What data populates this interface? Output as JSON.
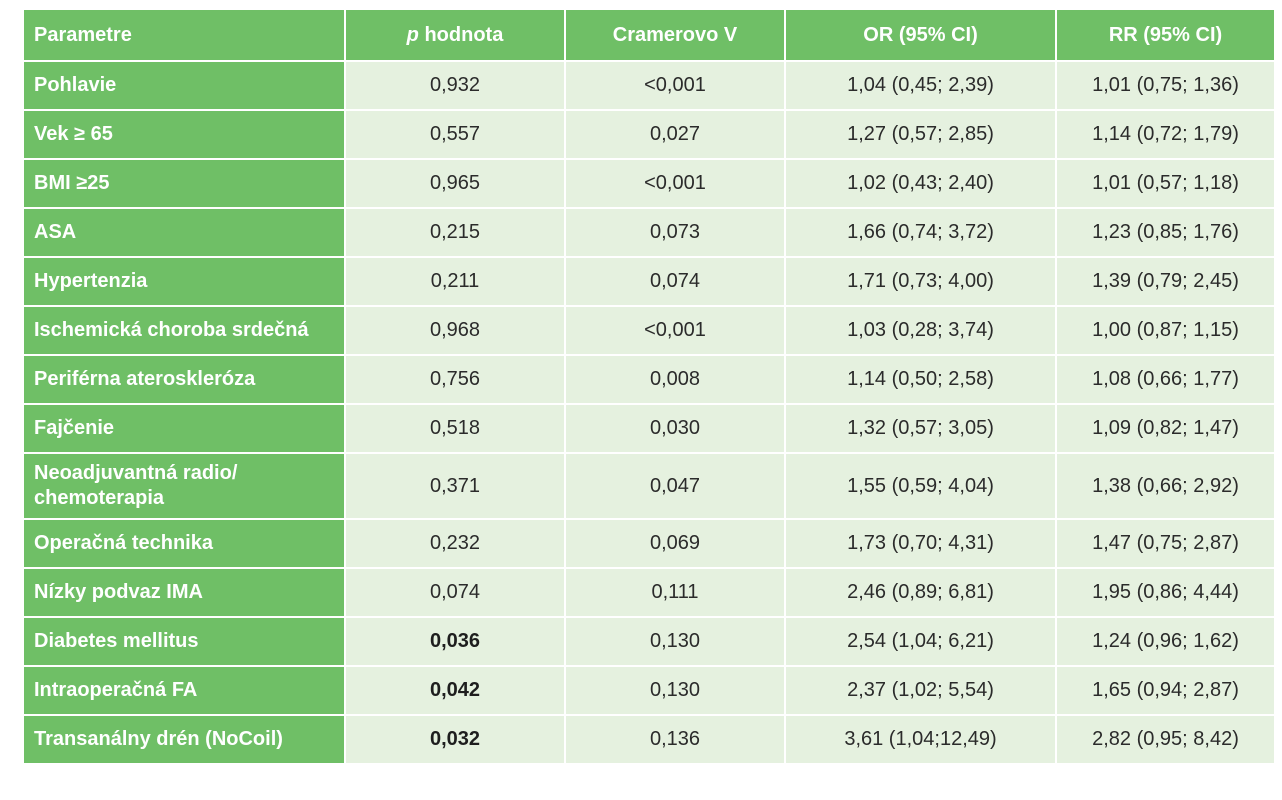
{
  "table": {
    "headers": {
      "parameter": "Parametre",
      "p_italic": "p",
      "p_rest": " hodnota",
      "cramer": "Cramerovo V",
      "or": "OR (95% CI)",
      "rr": "RR (95% CI)"
    },
    "rows": [
      {
        "param": "Pohlavie",
        "p": "0,932",
        "p_bold": false,
        "cramer": "<0,001",
        "or": "1,04 (0,45; 2,39)",
        "rr": "1,01 (0,75; 1,36)"
      },
      {
        "param": "Vek ≥ 65",
        "p": "0,557",
        "p_bold": false,
        "cramer": "0,027",
        "or": "1,27 (0,57; 2,85)",
        "rr": "1,14 (0,72; 1,79)"
      },
      {
        "param": "BMI ≥25",
        "p": "0,965",
        "p_bold": false,
        "cramer": "<0,001",
        "or": "1,02 (0,43; 2,40)",
        "rr": "1,01 (0,57; 1,18)"
      },
      {
        "param": "ASA",
        "p": "0,215",
        "p_bold": false,
        "cramer": "0,073",
        "or": "1,66 (0,74; 3,72)",
        "rr": "1,23 (0,85; 1,76)"
      },
      {
        "param": "Hypertenzia",
        "p": "0,211",
        "p_bold": false,
        "cramer": "0,074",
        "or": "1,71 (0,73; 4,00)",
        "rr": "1,39 (0,79; 2,45)"
      },
      {
        "param": "Ischemická choroba srdečná",
        "p": "0,968",
        "p_bold": false,
        "cramer": "<0,001",
        "or": "1,03 (0,28; 3,74)",
        "rr": "1,00 (0,87; 1,15)"
      },
      {
        "param": "Periférna ateroskleróza",
        "p": "0,756",
        "p_bold": false,
        "cramer": "0,008",
        "or": "1,14 (0,50; 2,58)",
        "rr": "1,08 (0,66; 1,77)"
      },
      {
        "param": "Fajčenie",
        "p": "0,518",
        "p_bold": false,
        "cramer": "0,030",
        "or": "1,32 (0,57; 3,05)",
        "rr": "1,09 (0,82; 1,47)"
      },
      {
        "param": "Neoadjuvantná radio/ chemoterapia",
        "p": "0,371",
        "p_bold": false,
        "cramer": "0,047",
        "or": "1,55 (0,59; 4,04)",
        "rr": "1,38 (0,66; 2,92)",
        "tall": true
      },
      {
        "param": "Operačná technika",
        "p": "0,232",
        "p_bold": false,
        "cramer": "0,069",
        "or": "1,73 (0,70; 4,31)",
        "rr": "1,47 (0,75; 2,87)"
      },
      {
        "param": "Nízky podvaz IMA",
        "p": "0,074",
        "p_bold": false,
        "cramer": "0,111",
        "or": "2,46 (0,89; 6,81)",
        "rr": "1,95 (0,86; 4,44)"
      },
      {
        "param": "Diabetes mellitus",
        "p": "0,036",
        "p_bold": true,
        "cramer": "0,130",
        "or": "2,54 (1,04; 6,21)",
        "rr": "1,24 (0,96; 1,62)"
      },
      {
        "param": "Intraoperačná FA",
        "p": "0,042",
        "p_bold": true,
        "cramer": "0,130",
        "or": "2,37 (1,02; 5,54)",
        "rr": "1,65 (0,94; 2,87)"
      },
      {
        "param": "Transanálny drén (NoCoil)",
        "p": "0,032",
        "p_bold": true,
        "cramer": "0,136",
        "or": "3,61 (1,04;12,49)",
        "rr": "2,82 (0,95; 8,42)"
      }
    ]
  },
  "colors": {
    "header_green": "#6fbf66",
    "cell_light": "#e5f1df"
  }
}
